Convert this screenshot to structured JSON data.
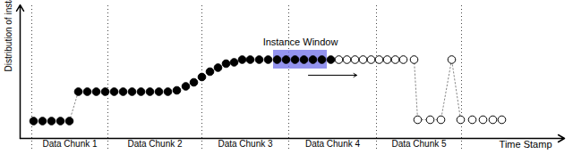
{
  "chart_data": {
    "type": "scatter",
    "x_label": "Time Stamp",
    "y_label": "Distribution of instance X",
    "xlim": [
      0,
      608
    ],
    "ylim": [
      0,
      100
    ],
    "tick_labels": false,
    "series": [
      {
        "type": "line",
        "line_style": "dotted",
        "color": "#888888",
        "x": [
          55,
          65
        ],
        "values": [
          13,
          35
        ]
      },
      {
        "type": "line",
        "line_style": "dotted",
        "color": "#888888",
        "x": [
          440,
          444,
          458,
          470,
          482,
          492
        ],
        "values": [
          59,
          14,
          14,
          14,
          59,
          14
        ]
      },
      {
        "type": "scatter",
        "marker": "filled",
        "color": "#000000",
        "x": [
          15,
          25,
          35,
          45,
          55,
          65,
          75,
          85,
          95,
          105,
          115,
          125,
          135,
          145,
          155,
          165,
          175,
          185,
          194,
          203,
          212,
          221,
          230,
          239,
          248,
          257,
          267,
          277,
          287,
          297,
          307,
          317,
          327,
          337,
          347
        ],
        "values": [
          13,
          13,
          13,
          13,
          13,
          35,
          35,
          35,
          35,
          35,
          35,
          35,
          35,
          35,
          35,
          35,
          36,
          39,
          42,
          46,
          50,
          53,
          56,
          57,
          59,
          59,
          59,
          59,
          59,
          59,
          59,
          59,
          59,
          59,
          59
        ]
      },
      {
        "type": "scatter",
        "marker": "open",
        "color": "#000000",
        "x": [
          356,
          365,
          374,
          383,
          392,
          401,
          410,
          419,
          428,
          440,
          444,
          458,
          470,
          482,
          492,
          505,
          517,
          528,
          538
        ],
        "values": [
          59,
          59,
          59,
          59,
          59,
          59,
          59,
          59,
          59,
          59,
          14,
          14,
          14,
          59,
          14,
          14,
          14,
          14,
          14
        ]
      }
    ],
    "chunks": [
      {
        "label": "Data Chunk 1",
        "start": 13,
        "end": 98
      },
      {
        "label": "Data Chunk 2",
        "start": 98,
        "end": 203
      },
      {
        "label": "Data Chunk 3",
        "start": 203,
        "end": 300
      },
      {
        "label": "Data Chunk 4",
        "start": 300,
        "end": 398
      },
      {
        "label": "Data Chunk 5",
        "start": 398,
        "end": 493
      }
    ],
    "instance_window": {
      "label": "Instance Window",
      "x_start": 283,
      "x_end": 343,
      "y_start": 52,
      "y_end": 66,
      "color": "#6f6fe8"
    }
  }
}
